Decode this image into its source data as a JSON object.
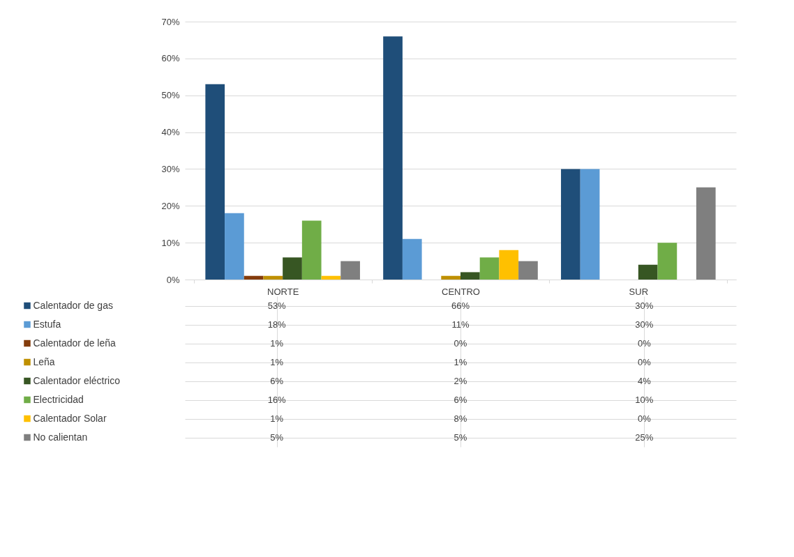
{
  "chart_data": {
    "type": "bar",
    "categories": [
      "NORTE",
      "CENTRO",
      "SUR"
    ],
    "series": [
      {
        "name": "Calentador de gas",
        "color": "#1f4e79",
        "values": [
          53,
          66,
          30
        ],
        "value_labels": [
          "53%",
          "66%",
          "30%"
        ]
      },
      {
        "name": "Estufa",
        "color": "#5b9bd5",
        "values": [
          18,
          11,
          30
        ],
        "value_labels": [
          "18%",
          "11%",
          "30%"
        ]
      },
      {
        "name": "Calentador de leña",
        "color": "#843c0c",
        "values": [
          1,
          0,
          0
        ],
        "value_labels": [
          "1%",
          "0%",
          "0%"
        ]
      },
      {
        "name": "Leña",
        "color": "#bf9000",
        "values": [
          1,
          1,
          0
        ],
        "value_labels": [
          "1%",
          "1%",
          "0%"
        ]
      },
      {
        "name": "Calentador eléctrico",
        "color": "#375623",
        "values": [
          6,
          2,
          4
        ],
        "value_labels": [
          "6%",
          "2%",
          "4%"
        ]
      },
      {
        "name": "Electricidad",
        "color": "#70ad47",
        "values": [
          16,
          6,
          10
        ],
        "value_labels": [
          "16%",
          "6%",
          "10%"
        ]
      },
      {
        "name": "Calentador Solar",
        "color": "#ffc000",
        "values": [
          1,
          8,
          0
        ],
        "value_labels": [
          "1%",
          "8%",
          "0%"
        ]
      },
      {
        "name": "No calientan",
        "color": "#7f7f7f",
        "values": [
          5,
          5,
          25
        ],
        "value_labels": [
          "5%",
          "5%",
          "25%"
        ]
      }
    ],
    "ylim": [
      0,
      70
    ],
    "yticks": [
      {
        "value": 0,
        "label": "0%"
      },
      {
        "value": 10,
        "label": "10%"
      },
      {
        "value": 20,
        "label": "20%"
      },
      {
        "value": 30,
        "label": "30%"
      },
      {
        "value": 40,
        "label": "40%"
      },
      {
        "value": 50,
        "label": "50%"
      },
      {
        "value": 60,
        "label": "60%"
      },
      {
        "value": 70,
        "label": "70%"
      }
    ],
    "grid": "y",
    "legend": "bottom"
  }
}
